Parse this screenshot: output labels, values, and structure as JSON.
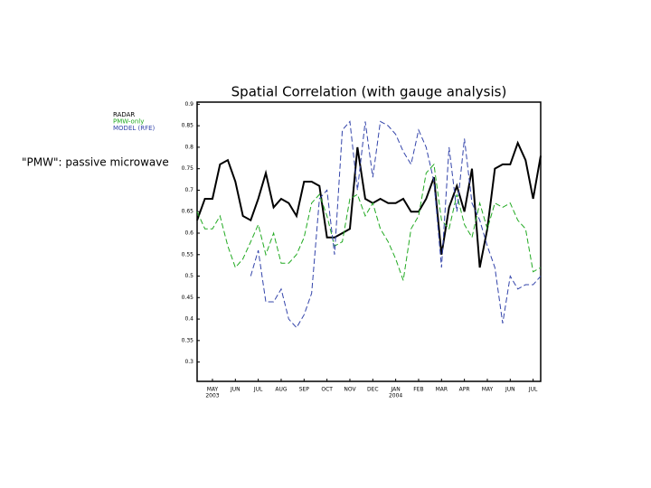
{
  "annotation": "\"PMW\": passive microwave",
  "chart_data": {
    "type": "line",
    "title": "Spatial Correlation (with gauge analysis)",
    "x": [
      -0.67,
      -0.33,
      0,
      0.33,
      0.67,
      1,
      1.33,
      1.67,
      2,
      2.33,
      2.67,
      3,
      3.33,
      3.67,
      4,
      4.33,
      4.67,
      5,
      5.33,
      5.67,
      6,
      6.33,
      6.67,
      7,
      7.33,
      7.67,
      8,
      8.33,
      8.67,
      9,
      9.33,
      9.67,
      10,
      10.33,
      10.67,
      11,
      11.33,
      11.67,
      12,
      12.33,
      12.67,
      13,
      13.33,
      13.67,
      14,
      14.33
    ],
    "xlim": [
      -0.67,
      14.33
    ],
    "xticks": [
      {
        "value": 0,
        "label": "MAY"
      },
      {
        "value": 1,
        "label": "JUN"
      },
      {
        "value": 2,
        "label": "JUL"
      },
      {
        "value": 3,
        "label": "AUG"
      },
      {
        "value": 4,
        "label": "SEP"
      },
      {
        "value": 5,
        "label": "OCT"
      },
      {
        "value": 6,
        "label": "NOV"
      },
      {
        "value": 7,
        "label": "DEC"
      },
      {
        "value": 8,
        "label": "JAN"
      },
      {
        "value": 9,
        "label": "FEB"
      },
      {
        "value": 10,
        "label": "MAR"
      },
      {
        "value": 11,
        "label": "APR"
      },
      {
        "value": 12,
        "label": "MAY"
      },
      {
        "value": 13,
        "label": "JUN"
      },
      {
        "value": 14,
        "label": "JUL"
      }
    ],
    "year_labels": [
      {
        "value": 0,
        "label": "2003"
      },
      {
        "value": 8,
        "label": "2004"
      }
    ],
    "ylim": [
      0.255,
      0.905
    ],
    "yticks": [
      0.3,
      0.35,
      0.4,
      0.45,
      0.5,
      0.55,
      0.6,
      0.65,
      0.7,
      0.75,
      0.8,
      0.85,
      0.9
    ],
    "legend": "outside-left",
    "series": [
      {
        "name": "RADAR",
        "color": "#000000",
        "dash": "solid",
        "values": [
          0.63,
          0.68,
          0.68,
          0.76,
          0.77,
          0.72,
          0.64,
          0.63,
          0.68,
          0.74,
          0.66,
          0.68,
          0.67,
          0.64,
          0.72,
          0.72,
          0.71,
          0.59,
          0.59,
          0.6,
          0.61,
          0.8,
          0.68,
          0.67,
          0.68,
          0.67,
          0.67,
          0.68,
          0.65,
          0.65,
          0.68,
          0.73,
          0.55,
          0.66,
          0.71,
          0.65,
          0.75,
          0.52,
          0.61,
          0.75,
          0.76,
          0.76,
          0.81,
          0.77,
          0.68,
          0.78
        ]
      },
      {
        "name": "PMW-only",
        "color": "#22aa22",
        "dash": "dashed",
        "values": [
          0.65,
          0.61,
          0.61,
          0.64,
          0.57,
          0.52,
          0.54,
          0.58,
          0.62,
          0.55,
          0.6,
          0.53,
          0.53,
          0.55,
          0.59,
          0.67,
          0.69,
          0.64,
          0.57,
          0.58,
          0.68,
          0.69,
          0.64,
          0.67,
          0.61,
          0.58,
          0.54,
          0.49,
          0.61,
          0.64,
          0.74,
          0.76,
          0.63,
          0.61,
          0.69,
          0.62,
          0.59,
          0.67,
          0.61,
          0.67,
          0.66,
          0.67,
          0.63,
          0.61,
          0.51,
          0.52
        ]
      },
      {
        "name": "MODEL (RFE)",
        "color": "#3344aa",
        "dash": "dashed",
        "values": [
          null,
          null,
          null,
          null,
          null,
          null,
          null,
          0.5,
          0.56,
          0.44,
          0.44,
          0.47,
          0.4,
          0.38,
          0.41,
          0.46,
          0.68,
          0.7,
          0.55,
          0.84,
          0.86,
          0.7,
          0.86,
          0.73,
          0.86,
          0.85,
          0.83,
          0.79,
          0.76,
          0.84,
          0.8,
          0.72,
          0.52,
          0.8,
          0.65,
          0.82,
          0.67,
          0.63,
          0.57,
          0.52,
          0.39,
          0.5,
          0.47,
          0.48,
          0.48,
          0.5
        ]
      }
    ]
  }
}
